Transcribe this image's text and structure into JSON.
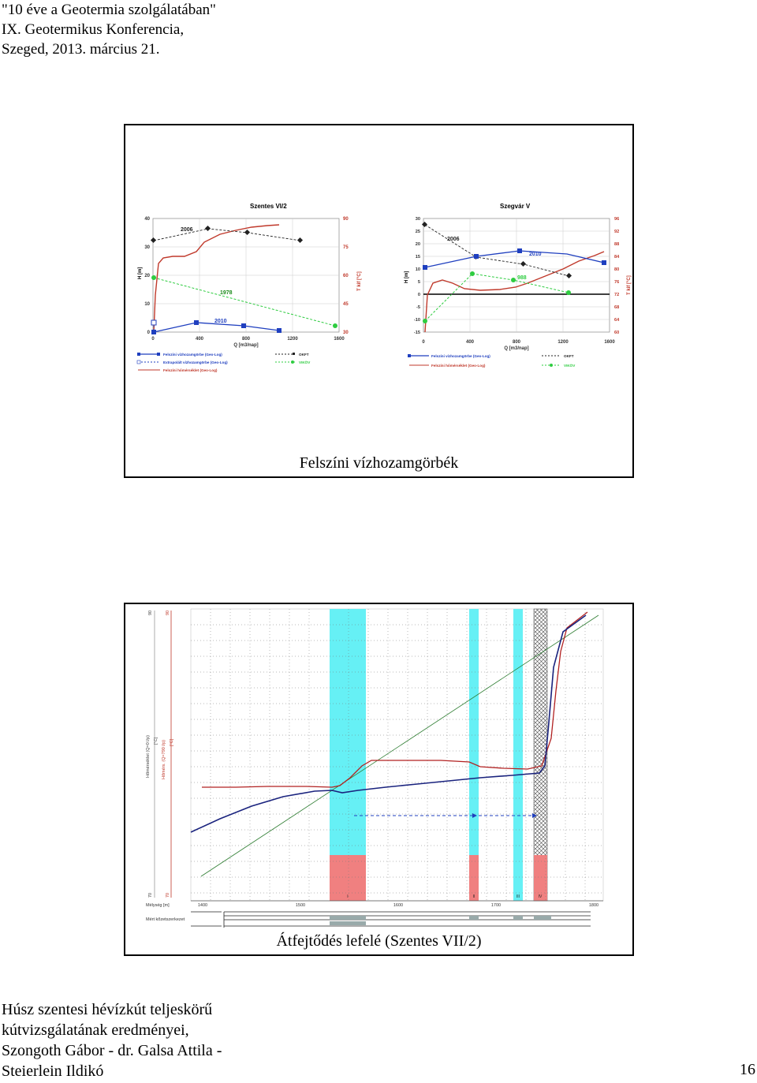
{
  "header": {
    "line1": "\"10 éve a Geotermia szolgálatában\"",
    "line2": "IX. Geotermikus Konferencia,",
    "line3": "Szeged, 2013. március 21."
  },
  "slide1": {
    "caption": "Felszíni vízhozamgörbék",
    "left_chart": {
      "title": "Szentes VI/2",
      "y_left_label": "H [m]",
      "y_right_label": "T kif [°C]",
      "x_label": "Q [m3/nap]",
      "x_ticks": [
        "0",
        "400",
        "800",
        "1200",
        "1600"
      ],
      "y_left_ticks": [
        "40",
        "30",
        "20",
        "10",
        "0"
      ],
      "y_right_ticks": [
        "90",
        "75",
        "60",
        "45",
        "30"
      ],
      "annotations": [
        "2006",
        "1978",
        "2010"
      ],
      "legend": [
        "Felszíni vízhozamgörbe (Geo-Log)",
        "OKFT",
        "Extrapolált vízhozamgörbe (Geo-Log)",
        "VIKÖV",
        "Felszíni hőmérséklet (Geo-Log)"
      ]
    },
    "right_chart": {
      "title": "Szegvár V",
      "y_left_label": "H [m]",
      "y_right_label": "T kif [°C]",
      "x_label": "Q [m3/nap]",
      "x_ticks": [
        "0",
        "400",
        "800",
        "1200",
        "1600"
      ],
      "y_left_ticks": [
        "30",
        "25",
        "20",
        "15",
        "10",
        "5",
        "0",
        "-5",
        "-10",
        "-15"
      ],
      "y_right_ticks": [
        "96",
        "92",
        "88",
        "84",
        "80",
        "76",
        "72",
        "68",
        "64",
        "60"
      ],
      "annotations": [
        "2006",
        "2010",
        "988"
      ],
      "legend": [
        "Felszíni vízhozamgörbe (Geo-Log)",
        "OKFT",
        "Felszíni hőmérséklet (Geo-Log)",
        "VIKÖV"
      ]
    }
  },
  "slide2": {
    "caption": "Átfejtődés lefelé (Szentes VII/2)",
    "left_axis_label_1": "Hőmérséklet (Q=0 l/p)",
    "left_axis_label_2": "Hőmérs. (Q=790 l/p)",
    "unit": "[°C]",
    "top_values": [
      "90",
      "90"
    ],
    "bottom_values": [
      "70",
      "70"
    ],
    "depth_label": "Mélység [m]",
    "depth_ticks": [
      "1400",
      "1500",
      "1600",
      "1700",
      "1800"
    ],
    "zone_labels": [
      "I",
      "II",
      "III",
      "IV"
    ],
    "strip_label": "Mért kőzetszerkezet"
  },
  "footer": {
    "line1": "Húsz szentesi hévízkút teljeskörű",
    "line2": "kútvizsgálatának eredményei,",
    "line3": "Szongoth Gábor - dr. Galsa Attila -",
    "line4": "Steierlein Ildikó",
    "page_number": "16"
  },
  "colors": {
    "flow_curve": "#1f3fbf",
    "temperature": "#c0392b",
    "vikov": "#2ecc40",
    "cyan_zone": "#66f0f5",
    "red_zone": "#f08080"
  }
}
